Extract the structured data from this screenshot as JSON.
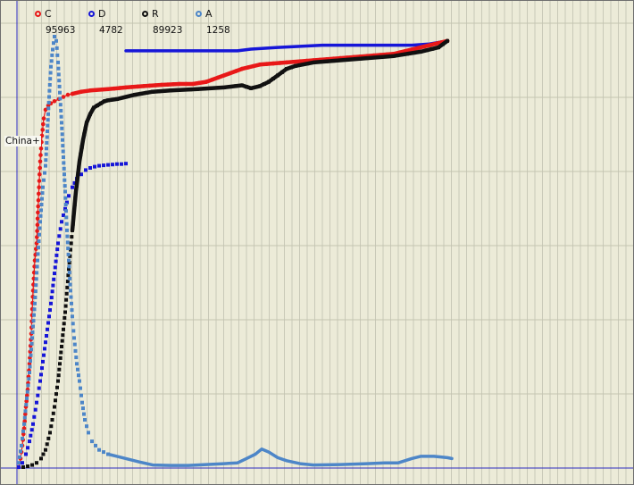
{
  "region_label": "China+",
  "legend": [
    {
      "key": "C",
      "value": "95963",
      "color": "#e81818"
    },
    {
      "key": "D",
      "value": "4782",
      "color": "#1616d8"
    },
    {
      "key": "R",
      "value": "89923",
      "color": "#111111"
    },
    {
      "key": "A",
      "value": "1258",
      "color": "#4d86c8"
    }
  ],
  "chart_data": {
    "type": "line",
    "grid": true,
    "series": [
      {
        "name": "C",
        "color": "#e81818",
        "style": "dotted-line",
        "points": [
          [
            0,
            0
          ],
          [
            2,
            0.02
          ],
          [
            4,
            0.05
          ],
          [
            6,
            0.09
          ],
          [
            8,
            0.14
          ],
          [
            10,
            0.18
          ],
          [
            12,
            0.24
          ],
          [
            14,
            0.31
          ],
          [
            16,
            0.41
          ],
          [
            18,
            0.48
          ],
          [
            20,
            0.52
          ],
          [
            22,
            0.62
          ],
          [
            24,
            0.71
          ],
          [
            26,
            0.77
          ],
          [
            28,
            0.81
          ],
          [
            30,
            0.83
          ],
          [
            33,
            0.84
          ],
          [
            36,
            0.845
          ],
          [
            40,
            0.85
          ],
          [
            45,
            0.855
          ],
          [
            50,
            0.86
          ],
          [
            55,
            0.865
          ],
          [
            60,
            0.867
          ],
          [
            70,
            0.872
          ],
          [
            80,
            0.875
          ],
          [
            100,
            0.878
          ],
          [
            120,
            0.882
          ],
          [
            140,
            0.885
          ],
          [
            160,
            0.888
          ],
          [
            180,
            0.89
          ],
          [
            195,
            0.89
          ],
          [
            210,
            0.895
          ],
          [
            230,
            0.91
          ],
          [
            250,
            0.925
          ],
          [
            270,
            0.935
          ],
          [
            300,
            0.94
          ],
          [
            330,
            0.945
          ],
          [
            360,
            0.95
          ],
          [
            390,
            0.955
          ],
          [
            420,
            0.96
          ],
          [
            440,
            0.97
          ],
          [
            460,
            0.98
          ],
          [
            480,
            0.99
          ]
        ]
      },
      {
        "name": "D",
        "color": "#1616d8",
        "style": "dots",
        "points": [
          [
            0,
            0
          ],
          [
            4,
            0.01
          ],
          [
            8,
            0.03
          ],
          [
            12,
            0.06
          ],
          [
            16,
            0.1
          ],
          [
            20,
            0.15
          ],
          [
            24,
            0.2
          ],
          [
            28,
            0.26
          ],
          [
            32,
            0.32
          ],
          [
            36,
            0.38
          ],
          [
            40,
            0.45
          ],
          [
            44,
            0.52
          ],
          [
            48,
            0.57
          ],
          [
            52,
            0.6
          ],
          [
            56,
            0.63
          ],
          [
            60,
            0.65
          ],
          [
            65,
            0.67
          ],
          [
            70,
            0.68
          ],
          [
            75,
            0.69
          ],
          [
            80,
            0.695
          ],
          [
            85,
            0.698
          ],
          [
            90,
            0.7
          ],
          [
            95,
            0.701
          ],
          [
            100,
            0.702
          ],
          [
            105,
            0.703
          ],
          [
            110,
            0.704
          ],
          [
            115,
            0.704
          ],
          [
            120,
            0.705
          ]
        ]
      },
      {
        "name": "D",
        "color": "#1616d8",
        "style": "line",
        "points": [
          [
            120,
            0.967
          ],
          [
            160,
            0.967
          ],
          [
            200,
            0.967
          ],
          [
            245,
            0.967
          ],
          [
            260,
            0.971
          ],
          [
            290,
            0.975
          ],
          [
            320,
            0.978
          ],
          [
            340,
            0.98
          ],
          [
            380,
            0.98
          ],
          [
            420,
            0.98
          ],
          [
            440,
            0.98
          ],
          [
            460,
            0.983
          ],
          [
            480,
            0.99
          ]
        ]
      },
      {
        "name": "R",
        "color": "#111111",
        "style": "dots",
        "points": [
          [
            5,
            0
          ],
          [
            10,
            0.002
          ],
          [
            15,
            0.005
          ],
          [
            20,
            0.01
          ],
          [
            25,
            0.02
          ],
          [
            30,
            0.04
          ],
          [
            35,
            0.08
          ],
          [
            40,
            0.14
          ],
          [
            44,
            0.2
          ],
          [
            48,
            0.28
          ],
          [
            52,
            0.36
          ],
          [
            56,
            0.46
          ],
          [
            60,
            0.55
          ],
          [
            64,
            0.64
          ],
          [
            68,
            0.71
          ],
          [
            72,
            0.76
          ],
          [
            76,
            0.8
          ],
          [
            80,
            0.82
          ],
          [
            84,
            0.835
          ],
          [
            88,
            0.84
          ],
          [
            92,
            0.845
          ],
          [
            96,
            0.85
          ],
          [
            100,
            0.852
          ],
          [
            110,
            0.855
          ],
          [
            120,
            0.86
          ],
          [
            130,
            0.865
          ],
          [
            150,
            0.872
          ],
          [
            170,
            0.875
          ],
          [
            200,
            0.878
          ],
          [
            230,
            0.882
          ],
          [
            250,
            0.887
          ],
          [
            260,
            0.88
          ],
          [
            270,
            0.885
          ],
          [
            280,
            0.895
          ],
          [
            290,
            0.91
          ],
          [
            300,
            0.925
          ],
          [
            310,
            0.932
          ],
          [
            330,
            0.94
          ],
          [
            360,
            0.945
          ],
          [
            390,
            0.95
          ],
          [
            420,
            0.955
          ],
          [
            450,
            0.965
          ],
          [
            470,
            0.975
          ],
          [
            480,
            0.99
          ]
        ]
      },
      {
        "name": "A",
        "color": "#4d86c8",
        "style": "dots",
        "points": [
          [
            0,
            0.01
          ],
          [
            3,
            0.05
          ],
          [
            6,
            0.1
          ],
          [
            9,
            0.16
          ],
          [
            12,
            0.22
          ],
          [
            15,
            0.3
          ],
          [
            18,
            0.38
          ],
          [
            21,
            0.48
          ],
          [
            24,
            0.57
          ],
          [
            27,
            0.65
          ],
          [
            30,
            0.7
          ],
          [
            32,
            0.78
          ],
          [
            34,
            0.86
          ],
          [
            36,
            0.93
          ],
          [
            38,
            0.97
          ],
          [
            40,
            1.0
          ],
          [
            42,
            0.99
          ],
          [
            44,
            0.94
          ],
          [
            46,
            0.87
          ],
          [
            48,
            0.8
          ],
          [
            50,
            0.72
          ],
          [
            52,
            0.64
          ],
          [
            54,
            0.55
          ],
          [
            56,
            0.48
          ],
          [
            58,
            0.41
          ],
          [
            60,
            0.35
          ],
          [
            62,
            0.3
          ],
          [
            65,
            0.24
          ],
          [
            68,
            0.2
          ],
          [
            71,
            0.15
          ],
          [
            74,
            0.11
          ],
          [
            78,
            0.08
          ],
          [
            82,
            0.06
          ],
          [
            86,
            0.05
          ],
          [
            90,
            0.04
          ],
          [
            95,
            0.035
          ],
          [
            100,
            0.03
          ]
        ]
      },
      {
        "name": "A",
        "color": "#4d86c8",
        "style": "line",
        "points": [
          [
            100,
            0.03
          ],
          [
            110,
            0.025
          ],
          [
            120,
            0.02
          ],
          [
            135,
            0.012
          ],
          [
            150,
            0.005
          ],
          [
            170,
            0.004
          ],
          [
            190,
            0.004
          ],
          [
            210,
            0.006
          ],
          [
            230,
            0.008
          ],
          [
            245,
            0.01
          ],
          [
            255,
            0.02
          ],
          [
            265,
            0.03
          ],
          [
            272,
            0.042
          ],
          [
            280,
            0.035
          ],
          [
            290,
            0.022
          ],
          [
            300,
            0.015
          ],
          [
            315,
            0.008
          ],
          [
            330,
            0.005
          ],
          [
            360,
            0.006
          ],
          [
            390,
            0.008
          ],
          [
            410,
            0.01
          ],
          [
            425,
            0.01
          ],
          [
            440,
            0.02
          ],
          [
            450,
            0.025
          ],
          [
            465,
            0.025
          ],
          [
            480,
            0.022
          ],
          [
            485,
            0.02
          ]
        ]
      }
    ]
  }
}
